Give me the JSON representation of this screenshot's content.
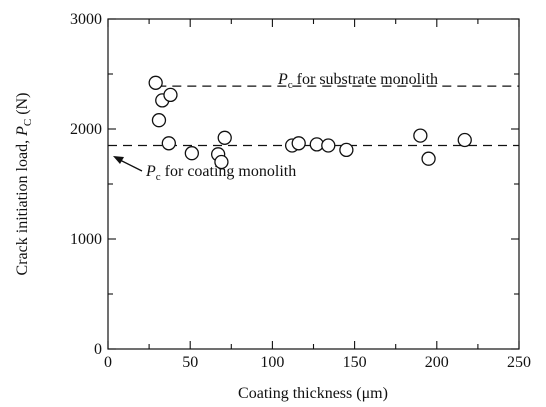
{
  "chart_data": {
    "type": "scatter",
    "xlabel": "Coating thickness (μm)",
    "ylabel_main": "Crack initiation load, ",
    "ylabel_var": "P",
    "ylabel_sub": "C",
    "ylabel_unit": " (N)",
    "xlim": [
      0,
      250
    ],
    "ylim": [
      0,
      3000
    ],
    "xticks": [
      0,
      50,
      100,
      150,
      200,
      250
    ],
    "yticks": [
      0,
      1000,
      2000,
      3000
    ],
    "x_minor_step": 25,
    "y_minor_step": 500,
    "grid": false,
    "points": [
      {
        "x": 29,
        "y": 2420
      },
      {
        "x": 31,
        "y": 2080
      },
      {
        "x": 33,
        "y": 2260
      },
      {
        "x": 38,
        "y": 2310
      },
      {
        "x": 37,
        "y": 1870
      },
      {
        "x": 51,
        "y": 1780
      },
      {
        "x": 67,
        "y": 1770
      },
      {
        "x": 69,
        "y": 1700
      },
      {
        "x": 71,
        "y": 1920
      },
      {
        "x": 112,
        "y": 1850
      },
      {
        "x": 116,
        "y": 1870
      },
      {
        "x": 127,
        "y": 1860
      },
      {
        "x": 134,
        "y": 1850
      },
      {
        "x": 145,
        "y": 1810
      },
      {
        "x": 190,
        "y": 1940
      },
      {
        "x": 195,
        "y": 1730
      },
      {
        "x": 217,
        "y": 1900
      }
    ],
    "reference_lines": [
      {
        "y": 2390,
        "x_start": 30,
        "x_end": 250,
        "label_var": "P",
        "label_sub": "c",
        "label_text": " for substrate monolith"
      },
      {
        "y": 1850,
        "x_start": 0,
        "x_end": 250,
        "label_var": "P",
        "label_sub": "c",
        "label_text": " for coating monolith"
      }
    ]
  }
}
